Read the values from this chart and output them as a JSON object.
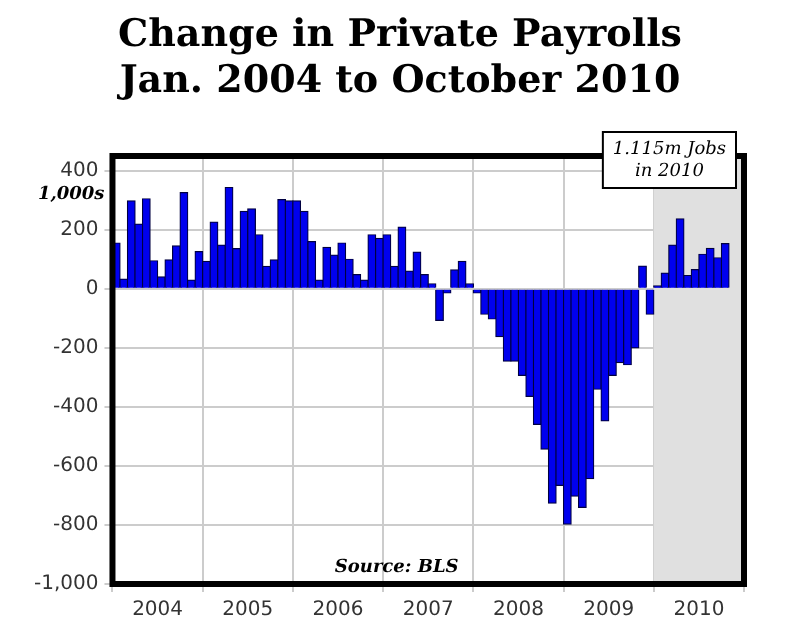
{
  "chart_data": {
    "type": "bar",
    "title": "Change in Private Payrolls Jan. 2004 to October 2010",
    "ylabel": "1,000s",
    "x": [
      "2004-01",
      "2004-02",
      "2004-03",
      "2004-04",
      "2004-05",
      "2004-06",
      "2004-07",
      "2004-08",
      "2004-09",
      "2004-10",
      "2004-11",
      "2004-12",
      "2005-01",
      "2005-02",
      "2005-03",
      "2005-04",
      "2005-05",
      "2005-06",
      "2005-07",
      "2005-08",
      "2005-09",
      "2005-10",
      "2005-11",
      "2005-12",
      "2006-01",
      "2006-02",
      "2006-03",
      "2006-04",
      "2006-05",
      "2006-06",
      "2006-07",
      "2006-08",
      "2006-09",
      "2006-10",
      "2006-11",
      "2006-12",
      "2007-01",
      "2007-02",
      "2007-03",
      "2007-04",
      "2007-05",
      "2007-06",
      "2007-07",
      "2007-08",
      "2007-09",
      "2007-10",
      "2007-11",
      "2007-12",
      "2008-01",
      "2008-02",
      "2008-03",
      "2008-04",
      "2008-05",
      "2008-06",
      "2008-07",
      "2008-08",
      "2008-09",
      "2008-10",
      "2008-11",
      "2008-12",
      "2009-01",
      "2009-02",
      "2009-03",
      "2009-04",
      "2009-05",
      "2009-06",
      "2009-07",
      "2009-08",
      "2009-09",
      "2009-10",
      "2009-11",
      "2009-12",
      "2010-01",
      "2010-02",
      "2010-03",
      "2010-04",
      "2010-05",
      "2010-06",
      "2010-07",
      "2010-08",
      "2010-09",
      "2010-10"
    ],
    "values": [
      155,
      33,
      298,
      219,
      305,
      95,
      40,
      98,
      145,
      326,
      29,
      126,
      93,
      226,
      148,
      343,
      136,
      262,
      271,
      183,
      76,
      98,
      302,
      298,
      298,
      262,
      160,
      29,
      140,
      114,
      155,
      100,
      48,
      29,
      183,
      171,
      183,
      76,
      209,
      60,
      124,
      48,
      17,
      -107,
      -14,
      64,
      93,
      17,
      -14,
      -86,
      -102,
      -162,
      -245,
      -245,
      -293,
      -364,
      -459,
      -543,
      -726,
      -666,
      -797,
      -702,
      -740,
      -643,
      -340,
      -447,
      -293,
      -250,
      -257,
      -200,
      77,
      -86,
      10,
      53,
      148,
      237,
      45,
      65,
      117,
      137,
      105,
      153
    ],
    "color": "#0000ee",
    "xlim": [
      "2004-01",
      "2011-01"
    ],
    "xticks": [
      {
        "value": "2004-01",
        "label": null
      },
      {
        "value": "2004-07",
        "label": "2004"
      },
      {
        "value": "2005-01",
        "label": null
      },
      {
        "value": "2005-07",
        "label": "2005"
      },
      {
        "value": "2006-01",
        "label": null
      },
      {
        "value": "2006-07",
        "label": "2006"
      },
      {
        "value": "2007-01",
        "label": null
      },
      {
        "value": "2007-07",
        "label": "2007"
      },
      {
        "value": "2008-01",
        "label": null
      },
      {
        "value": "2008-07",
        "label": "2008"
      },
      {
        "value": "2009-01",
        "label": null
      },
      {
        "value": "2009-07",
        "label": "2009"
      },
      {
        "value": "2010-01",
        "label": null
      },
      {
        "value": "2010-07",
        "label": "2010"
      },
      {
        "value": "2011-01",
        "label": null
      }
    ],
    "ylim": [
      -1000,
      450
    ],
    "yticks": [
      {
        "value": -1000,
        "label": "-1,000"
      },
      -800,
      -600,
      -400,
      -200,
      0,
      200,
      400
    ],
    "grid": true,
    "bands": [
      {
        "axis": "x",
        "from": "2010-01",
        "to": "2011-01",
        "label": "1.115m Jobs in 2010",
        "color": "#e0e0e0"
      }
    ],
    "annotations": [
      "Source: BLS"
    ]
  }
}
